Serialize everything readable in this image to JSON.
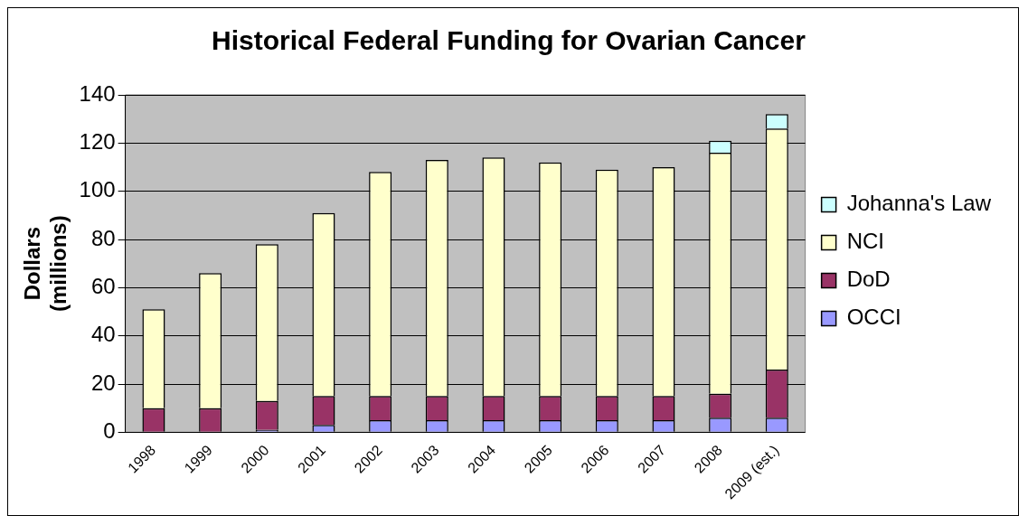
{
  "chart_data": {
    "type": "bar",
    "title": "Historical Federal Funding for Ovarian Cancer",
    "ylabel": "Dollars (millions)",
    "categories": [
      "1998",
      "1999",
      "2000",
      "2001",
      "2002",
      "2003",
      "2004",
      "2005",
      "2006",
      "2007",
      "2008",
      "2009 (est.)"
    ],
    "stacked": true,
    "ylim": [
      0,
      140
    ],
    "yticks": [
      0,
      20,
      40,
      60,
      80,
      100,
      120,
      140
    ],
    "grid": "y",
    "legend": "right",
    "series": [
      {
        "name": "OCCI",
        "color": "#9999ff",
        "values": [
          0,
          0,
          1,
          3,
          5,
          5,
          5,
          5,
          5,
          5,
          6,
          6
        ]
      },
      {
        "name": "DoD",
        "color": "#993366",
        "values": [
          10,
          10,
          12,
          12,
          10,
          10,
          10,
          10,
          10,
          10,
          10,
          20
        ]
      },
      {
        "name": "NCI",
        "color": "#ffffcc",
        "values": [
          41,
          56,
          65,
          76,
          93,
          98,
          99,
          97,
          94,
          95,
          100,
          100
        ]
      },
      {
        "name": "Johanna's Law",
        "color": "#ccffff",
        "values": [
          0,
          0,
          0,
          0,
          0,
          0,
          0,
          0,
          0,
          0,
          5,
          6
        ]
      }
    ]
  }
}
